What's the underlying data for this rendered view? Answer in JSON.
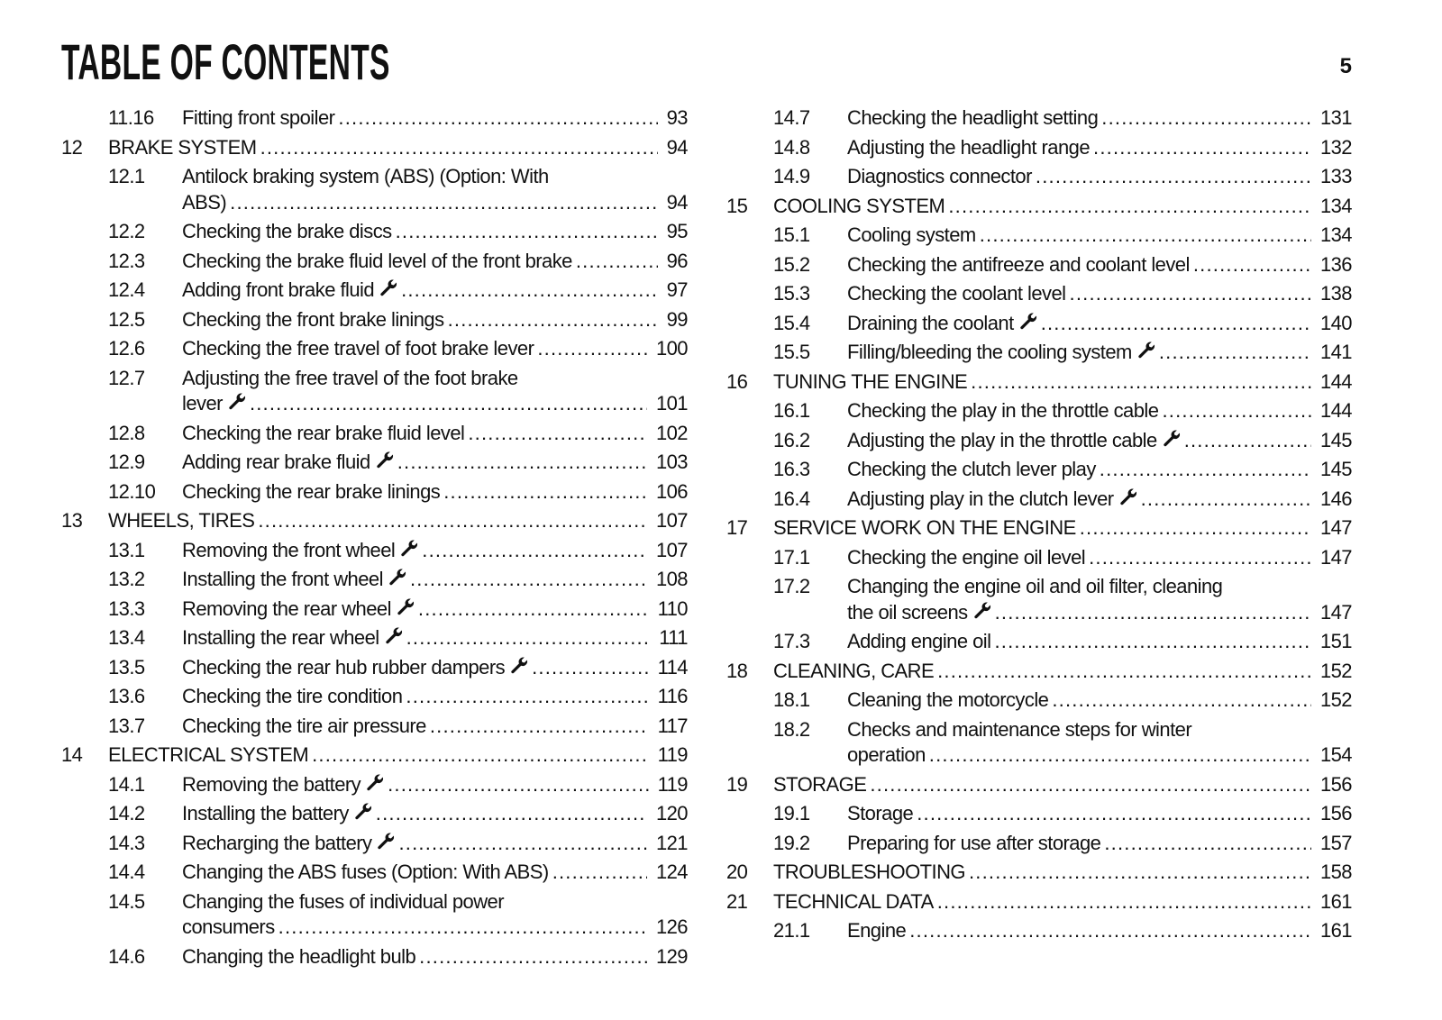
{
  "header": {
    "title": "TABLE OF CONTENTS",
    "page_number": "5"
  },
  "columns": [
    [
      {
        "level": "section",
        "num": "11.16",
        "lines": [
          "Fitting front spoiler"
        ],
        "page": "93"
      },
      {
        "level": "chapter",
        "num": "12",
        "lines": [
          "BRAKE SYSTEM"
        ],
        "page": "94"
      },
      {
        "level": "section",
        "num": "12.1",
        "lines": [
          "Antilock braking system (ABS) (Option: With",
          "ABS)"
        ],
        "page": "94"
      },
      {
        "level": "section",
        "num": "12.2",
        "lines": [
          "Checking the brake discs"
        ],
        "page": "95"
      },
      {
        "level": "section",
        "num": "12.3",
        "lines": [
          "Checking the brake fluid level of the front brake"
        ],
        "page": "96"
      },
      {
        "level": "section",
        "num": "12.4",
        "lines": [
          "Adding front brake fluid"
        ],
        "wrench": true,
        "page": "97"
      },
      {
        "level": "section",
        "num": "12.5",
        "lines": [
          "Checking the front brake linings"
        ],
        "page": "99"
      },
      {
        "level": "section",
        "num": "12.6",
        "lines": [
          "Checking the free travel of foot brake lever"
        ],
        "page": "100"
      },
      {
        "level": "section",
        "num": "12.7",
        "lines": [
          "Adjusting the free travel of the foot brake",
          "lever"
        ],
        "wrench": true,
        "page": "101"
      },
      {
        "level": "section",
        "num": "12.8",
        "lines": [
          "Checking the rear brake fluid level"
        ],
        "page": "102"
      },
      {
        "level": "section",
        "num": "12.9",
        "lines": [
          "Adding rear brake fluid"
        ],
        "wrench": true,
        "page": "103"
      },
      {
        "level": "section",
        "num": "12.10",
        "lines": [
          "Checking the rear brake linings"
        ],
        "page": "106"
      },
      {
        "level": "chapter",
        "num": "13",
        "lines": [
          "WHEELS, TIRES"
        ],
        "page": "107"
      },
      {
        "level": "section",
        "num": "13.1",
        "lines": [
          "Removing the front wheel"
        ],
        "wrench": true,
        "page": "107"
      },
      {
        "level": "section",
        "num": "13.2",
        "lines": [
          "Installing the front wheel"
        ],
        "wrench": true,
        "page": "108"
      },
      {
        "level": "section",
        "num": "13.3",
        "lines": [
          "Removing the rear wheel"
        ],
        "wrench": true,
        "page": "110"
      },
      {
        "level": "section",
        "num": "13.4",
        "lines": [
          "Installing the rear wheel"
        ],
        "wrench": true,
        "page": "111"
      },
      {
        "level": "section",
        "num": "13.5",
        "lines": [
          "Checking the rear hub rubber dampers"
        ],
        "wrench": true,
        "page": "114"
      },
      {
        "level": "section",
        "num": "13.6",
        "lines": [
          "Checking the tire condition"
        ],
        "page": "116"
      },
      {
        "level": "section",
        "num": "13.7",
        "lines": [
          "Checking the tire air pressure"
        ],
        "page": "117"
      },
      {
        "level": "chapter",
        "num": "14",
        "lines": [
          "ELECTRICAL SYSTEM"
        ],
        "page": "119"
      },
      {
        "level": "section",
        "num": "14.1",
        "lines": [
          "Removing the battery"
        ],
        "wrench": true,
        "page": "119"
      },
      {
        "level": "section",
        "num": "14.2",
        "lines": [
          "Installing the battery"
        ],
        "wrench": true,
        "page": "120"
      },
      {
        "level": "section",
        "num": "14.3",
        "lines": [
          "Recharging the battery"
        ],
        "wrench": true,
        "page": "121"
      },
      {
        "level": "section",
        "num": "14.4",
        "lines": [
          "Changing the ABS fuses (Option: With ABS)"
        ],
        "page": "124"
      },
      {
        "level": "section",
        "num": "14.5",
        "lines": [
          "Changing the fuses of individual power",
          "consumers"
        ],
        "page": "126"
      },
      {
        "level": "section",
        "num": "14.6",
        "lines": [
          "Changing the headlight bulb"
        ],
        "page": "129"
      }
    ],
    [
      {
        "level": "section",
        "num": "14.7",
        "lines": [
          "Checking the headlight setting"
        ],
        "page": "131"
      },
      {
        "level": "section",
        "num": "14.8",
        "lines": [
          "Adjusting the headlight range"
        ],
        "page": "132"
      },
      {
        "level": "section",
        "num": "14.9",
        "lines": [
          "Diagnostics connector"
        ],
        "page": "133"
      },
      {
        "level": "chapter",
        "num": "15",
        "lines": [
          "COOLING SYSTEM"
        ],
        "page": "134"
      },
      {
        "level": "section",
        "num": "15.1",
        "lines": [
          "Cooling system"
        ],
        "page": "134"
      },
      {
        "level": "section",
        "num": "15.2",
        "lines": [
          "Checking the antifreeze and coolant level"
        ],
        "page": "136"
      },
      {
        "level": "section",
        "num": "15.3",
        "lines": [
          "Checking the coolant level"
        ],
        "page": "138"
      },
      {
        "level": "section",
        "num": "15.4",
        "lines": [
          "Draining the coolant"
        ],
        "wrench": true,
        "page": "140"
      },
      {
        "level": "section",
        "num": "15.5",
        "lines": [
          "Filling/bleeding the cooling system"
        ],
        "wrench": true,
        "page": "141"
      },
      {
        "level": "chapter",
        "num": "16",
        "lines": [
          "TUNING THE ENGINE"
        ],
        "page": "144"
      },
      {
        "level": "section",
        "num": "16.1",
        "lines": [
          "Checking the play in the throttle cable"
        ],
        "page": "144"
      },
      {
        "level": "section",
        "num": "16.2",
        "lines": [
          "Adjusting the play in the throttle cable"
        ],
        "wrench": true,
        "page": "145"
      },
      {
        "level": "section",
        "num": "16.3",
        "lines": [
          "Checking the clutch lever play"
        ],
        "page": "145"
      },
      {
        "level": "section",
        "num": "16.4",
        "lines": [
          "Adjusting play in the clutch lever"
        ],
        "wrench": true,
        "page": "146"
      },
      {
        "level": "chapter",
        "num": "17",
        "lines": [
          "SERVICE WORK ON THE ENGINE"
        ],
        "page": "147"
      },
      {
        "level": "section",
        "num": "17.1",
        "lines": [
          "Checking the engine oil level"
        ],
        "page": "147"
      },
      {
        "level": "section",
        "num": "17.2",
        "lines": [
          "Changing the engine oil and oil filter, cleaning",
          "the oil screens"
        ],
        "wrench": true,
        "page": "147"
      },
      {
        "level": "section",
        "num": "17.3",
        "lines": [
          "Adding engine oil"
        ],
        "page": "151"
      },
      {
        "level": "chapter",
        "num": "18",
        "lines": [
          "CLEANING, CARE"
        ],
        "page": "152"
      },
      {
        "level": "section",
        "num": "18.1",
        "lines": [
          "Cleaning the motorcycle"
        ],
        "page": "152"
      },
      {
        "level": "section",
        "num": "18.2",
        "lines": [
          "Checks and maintenance steps for winter",
          "operation"
        ],
        "page": "154"
      },
      {
        "level": "chapter",
        "num": "19",
        "lines": [
          "STORAGE"
        ],
        "page": "156"
      },
      {
        "level": "section",
        "num": "19.1",
        "lines": [
          "Storage"
        ],
        "page": "156"
      },
      {
        "level": "section",
        "num": "19.2",
        "lines": [
          "Preparing for use after storage"
        ],
        "page": "157"
      },
      {
        "level": "chapter",
        "num": "20",
        "lines": [
          "TROUBLESHOOTING"
        ],
        "page": "158"
      },
      {
        "level": "chapter",
        "num": "21",
        "lines": [
          "TECHNICAL DATA"
        ],
        "page": "161"
      },
      {
        "level": "section",
        "num": "21.1",
        "lines": [
          "Engine"
        ],
        "page": "161"
      }
    ]
  ],
  "icons": {
    "workshop": "wrench-icon"
  }
}
